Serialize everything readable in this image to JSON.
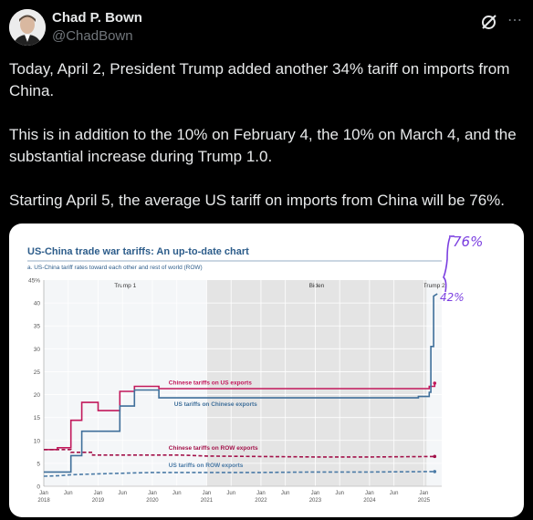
{
  "author": {
    "name": "Chad P. Bown",
    "handle": "@ChadBown",
    "icons": [
      "avatar-photo",
      "grok-icon",
      "more-icon"
    ]
  },
  "tweet": {
    "paragraphs": [
      "Today, April 2, President Trump added another 34% tariff on imports from China.",
      "This is in addition to the 10% on February 4, the 10% on March 4, and the substantial increase during Trump 1.0.",
      "Starting April 5, the average US tariff on imports from China will be 76%."
    ]
  },
  "annotations": {
    "top": "76%",
    "bottom": "42%"
  },
  "chart_data": {
    "type": "line",
    "title": "US-China trade war tariffs: An up-to-date chart",
    "subtitle": "a. US-China tariff rates toward each other and rest of world (ROW)",
    "ylim": [
      0,
      45
    ],
    "y_unit_label": "45%",
    "y_ticks": [
      0,
      5,
      10,
      15,
      20,
      25,
      30,
      35,
      40
    ],
    "x_range": [
      2018.0,
      2025.33
    ],
    "x_ticks": [
      {
        "x": 2018.0,
        "line1": "Jan",
        "line2": "2018"
      },
      {
        "x": 2018.45,
        "line1": "Jun",
        "line2": ""
      },
      {
        "x": 2019.0,
        "line1": "Jan",
        "line2": "2019"
      },
      {
        "x": 2019.45,
        "line1": "Jun",
        "line2": ""
      },
      {
        "x": 2020.0,
        "line1": "Jan",
        "line2": "2020"
      },
      {
        "x": 2020.45,
        "line1": "Jun",
        "line2": ""
      },
      {
        "x": 2021.0,
        "line1": "Jan",
        "line2": "2021"
      },
      {
        "x": 2021.45,
        "line1": "Jun",
        "line2": ""
      },
      {
        "x": 2022.0,
        "line1": "Jan",
        "line2": "2022"
      },
      {
        "x": 2022.45,
        "line1": "Jun",
        "line2": ""
      },
      {
        "x": 2023.0,
        "line1": "Jan",
        "line2": "2023"
      },
      {
        "x": 2023.45,
        "line1": "Jun",
        "line2": ""
      },
      {
        "x": 2024.0,
        "line1": "Jan",
        "line2": "2024"
      },
      {
        "x": 2024.45,
        "line1": "Jun",
        "line2": ""
      },
      {
        "x": 2025.0,
        "line1": "Jan",
        "line2": "2025"
      }
    ],
    "periods": [
      {
        "label": "Trump 1",
        "start": 2018.0,
        "end": 2021.0,
        "shade": false
      },
      {
        "label": "Biden",
        "start": 2021.0,
        "end": 2025.05,
        "shade": true
      },
      {
        "label": "Trump 2",
        "start": 2025.05,
        "end": 2025.33,
        "shade": false
      }
    ],
    "series": [
      {
        "name": "Chinese tariffs on US exports",
        "color": "#c2185b",
        "dashed": false,
        "endpoint": true,
        "points": [
          [
            2018.0,
            8.0
          ],
          [
            2018.25,
            8.0
          ],
          [
            2018.25,
            8.4
          ],
          [
            2018.5,
            8.4
          ],
          [
            2018.5,
            14.4
          ],
          [
            2018.7,
            14.4
          ],
          [
            2018.7,
            18.3
          ],
          [
            2019.0,
            18.3
          ],
          [
            2019.0,
            16.5
          ],
          [
            2019.4,
            16.5
          ],
          [
            2019.4,
            20.7
          ],
          [
            2019.67,
            20.7
          ],
          [
            2019.67,
            21.8
          ],
          [
            2020.12,
            21.8
          ],
          [
            2020.12,
            21.3
          ],
          [
            2024.9,
            21.3
          ],
          [
            2025.1,
            21.3
          ],
          [
            2025.1,
            21.8
          ],
          [
            2025.2,
            21.8
          ],
          [
            2025.2,
            22.5
          ]
        ],
        "label_x": 2020.3,
        "label_y": 22.2
      },
      {
        "name": "US tariffs on Chinese exports",
        "color": "#3f6f9a",
        "dashed": false,
        "endpoint": false,
        "points": [
          [
            2018.0,
            3.1
          ],
          [
            2018.5,
            3.1
          ],
          [
            2018.5,
            6.7
          ],
          [
            2018.7,
            6.7
          ],
          [
            2018.7,
            12.0
          ],
          [
            2019.4,
            12.0
          ],
          [
            2019.4,
            17.5
          ],
          [
            2019.67,
            17.5
          ],
          [
            2019.67,
            21.0
          ],
          [
            2020.12,
            21.0
          ],
          [
            2020.12,
            19.3
          ],
          [
            2024.9,
            19.3
          ],
          [
            2024.9,
            19.6
          ],
          [
            2025.1,
            19.6
          ],
          [
            2025.1,
            20.5
          ],
          [
            2025.13,
            20.5
          ],
          [
            2025.13,
            30.5
          ],
          [
            2025.18,
            30.5
          ],
          [
            2025.18,
            41.5
          ],
          [
            2025.25,
            42.0
          ]
        ],
        "label_x": 2020.4,
        "label_y": 17.5
      },
      {
        "name": "Chinese tariffs on ROW exports",
        "color": "#a3124a",
        "dashed": true,
        "endpoint": true,
        "points": [
          [
            2018.0,
            8.0
          ],
          [
            2018.5,
            8.0
          ],
          [
            2018.5,
            7.4
          ],
          [
            2018.9,
            7.4
          ],
          [
            2018.9,
            6.8
          ],
          [
            2020.5,
            6.8
          ],
          [
            2021.0,
            6.6
          ],
          [
            2022.0,
            6.5
          ],
          [
            2023.0,
            6.4
          ],
          [
            2024.0,
            6.4
          ],
          [
            2025.2,
            6.5
          ]
        ],
        "label_x": 2020.3,
        "label_y": 8.0
      },
      {
        "name": "US tariffs on ROW exports",
        "color": "#4a7aa6",
        "dashed": true,
        "endpoint": true,
        "points": [
          [
            2018.0,
            2.2
          ],
          [
            2018.3,
            2.3
          ],
          [
            2018.5,
            2.5
          ],
          [
            2019.0,
            2.7
          ],
          [
            2020.0,
            3.0
          ],
          [
            2021.0,
            3.0
          ],
          [
            2022.0,
            3.0
          ],
          [
            2023.0,
            3.1
          ],
          [
            2024.0,
            3.1
          ],
          [
            2025.2,
            3.2
          ]
        ],
        "label_x": 2020.3,
        "label_y": 4.2
      }
    ]
  }
}
